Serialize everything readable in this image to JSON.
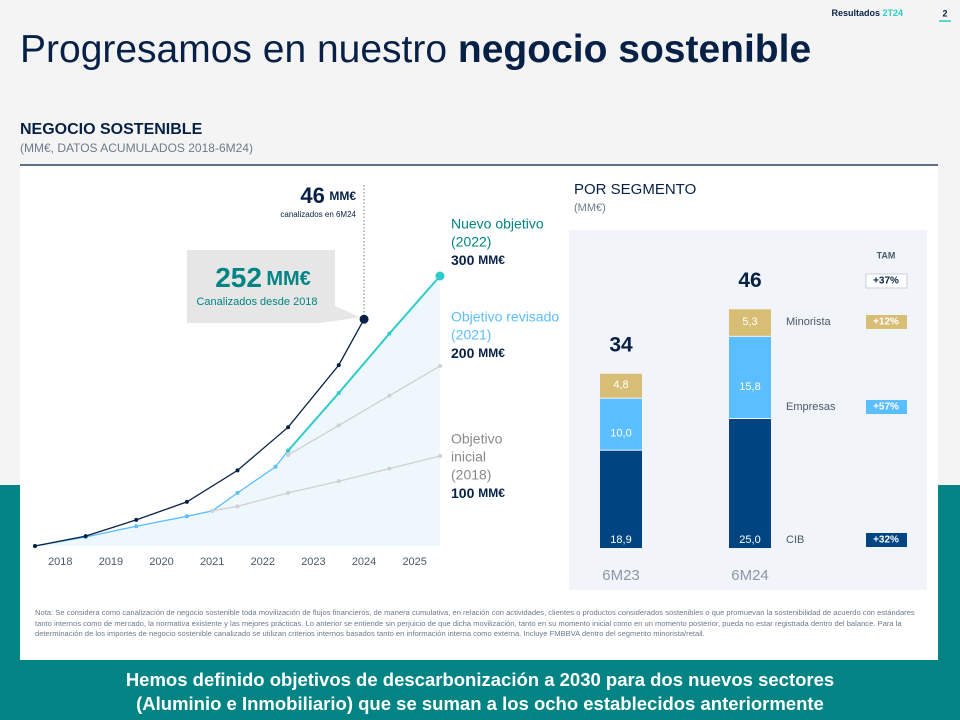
{
  "header": {
    "label": "Resultados",
    "period": "2T24",
    "page": "2"
  },
  "title_regular": "Progresamos en nuestro",
  "title_bold": "negocio sostenible",
  "section_title": "NEGOCIO SOSTENIBLE",
  "section_subtitle": "(MM€, DATOS ACUMULADOS 2018-6M24)",
  "chart_data": [
    {
      "type": "line",
      "xlim": [
        2017.5,
        2025.5
      ],
      "xticks": [
        2018,
        2019,
        2020,
        2021,
        2022,
        2023,
        2024,
        2025
      ],
      "ylim": [
        0,
        300
      ],
      "grid": false,
      "series": [
        {
          "color": "#5bbeff",
          "x": [
            2017.5,
            2018.5,
            2019.5,
            2020.5,
            2021.0,
            2021.5,
            2022.25,
            2022.5
          ],
          "values": [
            0,
            10,
            22,
            33,
            39,
            59,
            88,
            106
          ]
        },
        {
          "label_lines": [
            "Objetivo",
            "inicial",
            "(2018)"
          ],
          "target": 100,
          "target_unit": "MM€",
          "color": "#d0d0d0",
          "label_color": "#8a8a8a",
          "x": [
            2021.0,
            2021.5,
            2022.5,
            2023.5,
            2024.5,
            2025.5
          ],
          "values": [
            39,
            44,
            59,
            72,
            86,
            100
          ]
        },
        {
          "label_lines": [
            "Objetivo revisado",
            "(2021)"
          ],
          "target": 200,
          "target_unit": "MM€",
          "color": "#d0d0d0",
          "label_color": "#5bbeff",
          "x": [
            2022.5,
            2023.5,
            2024.5,
            2025.5
          ],
          "values": [
            101,
            134,
            167,
            200
          ]
        },
        {
          "label_lines": [
            "Nuevo objetivo",
            "(2022)"
          ],
          "target": 300,
          "target_unit": "MM€",
          "color": "#2dccc8",
          "label_color": "#028484",
          "x": [
            2022.5,
            2023.5,
            2024.5,
            2025.5
          ],
          "values": [
            106,
            170,
            236,
            300
          ]
        },
        {
          "color": "#072146",
          "x": [
            2017.5,
            2018.5,
            2019.5,
            2020.5,
            2021.5,
            2022.5,
            2023.5,
            2024.0
          ],
          "values": [
            0,
            11,
            29,
            49,
            84,
            132,
            201,
            252
          ]
        }
      ],
      "annotations": [
        {
          "value": 46,
          "unit": "MM€",
          "text": "canalizados en 6M24"
        },
        {
          "value": 252,
          "unit": "MM€",
          "text": "Canalizados desde 2018"
        }
      ]
    },
    {
      "type": "stacked_bar",
      "title": "POR SEGMENTO",
      "subtitle": "(MM€)",
      "categories": [
        "6M23",
        "6M24"
      ],
      "totals": [
        34,
        46
      ],
      "series": [
        {
          "name": "CIB",
          "color": "#004481",
          "label_color": "#ffffff",
          "values": [
            18.9,
            25.0
          ],
          "value_labels": [
            "18,9",
            "25,0"
          ],
          "tam": "+32%"
        },
        {
          "name": "Empresas",
          "color": "#5bbeff",
          "label_color": "#ffffff",
          "values": [
            10.0,
            15.8
          ],
          "value_labels": [
            "10,0",
            "15,8"
          ],
          "tam": "+57%"
        },
        {
          "name": "Minorista",
          "color": "#d8be75",
          "label_color": "#ffffff",
          "values": [
            4.8,
            5.3
          ],
          "value_labels": [
            "4,8",
            "5,3"
          ],
          "tam": "+12%"
        }
      ],
      "tam_title": "TAM",
      "tam_total": "+37%"
    }
  ],
  "note": "Nota: Se considera como canalización de negocio sostenible toda movilización de flujos financieros, de manera cumulativa, en relación con actividades, clientes o productos considerados sostenibles o que promuevan la sostenibilidad de acuerdo con estándares tanto internos como de mercado, la normativa existente y las mejores prácticas. Lo anterior se entiende sin perjuicio de que dicha movilización, tanto en su momento inicial como en un momento posterior, pueda no estar registrada dentro del balance. Para la determinación de los importes de negocio sostenible canalizado se utilizan criterios internos basados tanto en información interna como externa. Incluye FMBBVA dentro del segmento minorista/retail.",
  "footer": [
    "Hemos definido objetivos de descarbonización a 2030 para dos nuevos sectores",
    "(Aluminio e Inmobiliario) que se suman a los ocho establecidos anteriormente"
  ]
}
